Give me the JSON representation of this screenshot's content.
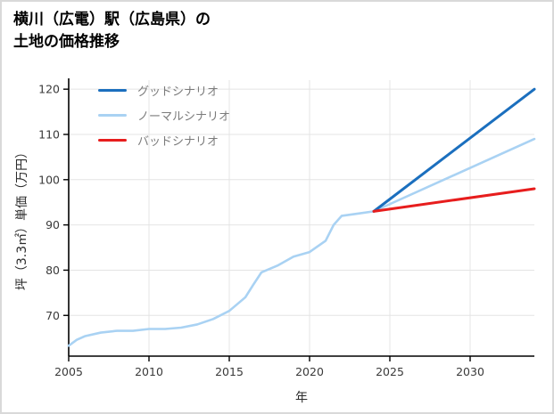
{
  "title": {
    "line1": "横川（広電）駅（広島県）の",
    "line2": "土地の価格推移"
  },
  "chart_data": {
    "type": "line",
    "title": "横川（広電）駅（広島県）の土地の価格推移",
    "xlabel": "年",
    "ylabel": "坪（3.3㎡）単価（万円）",
    "xlim": [
      2005,
      2034
    ],
    "ylim": [
      61,
      122
    ],
    "xticks": [
      2005,
      2010,
      2015,
      2020,
      2025,
      2030
    ],
    "yticks": [
      70,
      80,
      90,
      100,
      110,
      120
    ],
    "grid": true,
    "grid_color": "#e4e4e4",
    "axis_color": "#000000",
    "tick_label_color": "#3a3a3a",
    "legend_position": "upper-left",
    "series": [
      {
        "name": "グッドシナリオ",
        "color": "#1b6fbe",
        "width": 3,
        "x": [
          2024,
          2034
        ],
        "y": [
          93,
          120
        ]
      },
      {
        "name": "ノーマルシナリオ",
        "color": "#a9d2f3",
        "width": 2.6,
        "x": [
          2005,
          2005.5,
          2006,
          2007,
          2008,
          2009,
          2010,
          2011,
          2012,
          2013,
          2014,
          2015,
          2016,
          2016.5,
          2017,
          2018,
          2019,
          2020,
          2021,
          2021.5,
          2022,
          2023,
          2024,
          2034
        ],
        "y": [
          63.3,
          64.6,
          65.4,
          66.2,
          66.6,
          66.6,
          67.0,
          67.0,
          67.3,
          68.0,
          69.2,
          71.0,
          74.0,
          76.8,
          79.5,
          81.0,
          83.0,
          84.0,
          86.5,
          90.0,
          92.0,
          92.5,
          93.0,
          109
        ]
      },
      {
        "name": "バッドシナリオ",
        "color": "#e71d1d",
        "width": 3,
        "x": [
          2024,
          2034
        ],
        "y": [
          93,
          98
        ]
      }
    ]
  }
}
